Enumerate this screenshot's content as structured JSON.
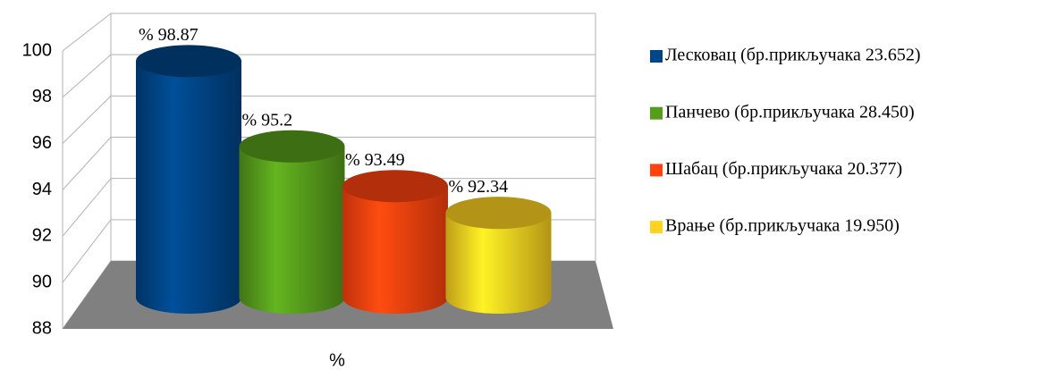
{
  "chart_data": {
    "type": "bar",
    "categories": [
      "%"
    ],
    "series": [
      {
        "name": "Лесковац (бр.прикључака 23.652)",
        "color": "#004586",
        "values": [
          98.87
        ],
        "value_labels": [
          "% 98.87"
        ]
      },
      {
        "name": "Панчево (бр.прикључака 28.450)",
        "color": "#579d1c",
        "values": [
          95.2
        ],
        "value_labels": [
          "% 95.2"
        ]
      },
      {
        "name": "Шабац (бр.прикључака 20.377)",
        "color": "#ff420e",
        "values": [
          93.49
        ],
        "value_labels": [
          "% 93.49"
        ]
      },
      {
        "name": "Врање (бр.прикључака 19.950)",
        "color": "#ffd320",
        "values": [
          92.34
        ],
        "value_labels": [
          "% 92.34"
        ]
      }
    ],
    "ylim": [
      88,
      100
    ],
    "yticks": [
      88,
      90,
      92,
      94,
      96,
      98,
      100
    ],
    "grid": true,
    "legend": "right"
  }
}
